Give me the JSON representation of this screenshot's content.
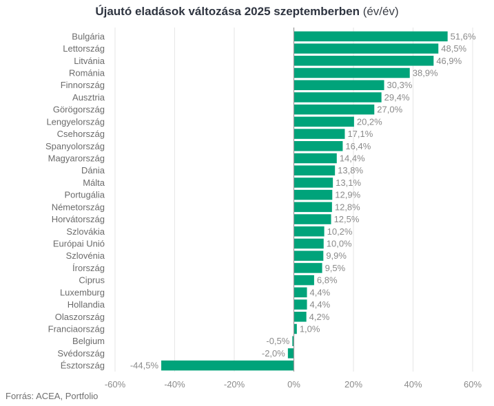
{
  "chart_data": {
    "type": "bar",
    "orientation": "horizontal",
    "title": "Újautó eladások változása 2025 szeptemberben",
    "title_suffix": "(év/év)",
    "xlabel": "",
    "ylabel": "",
    "xlim": [
      -60,
      60
    ],
    "x_ticks": [
      -60,
      -40,
      -20,
      0,
      20,
      40,
      60
    ],
    "x_tick_labels": [
      "-60%",
      "-40%",
      "-20%",
      "0%",
      "20%",
      "40%",
      "60%"
    ],
    "grid": "vertical",
    "legend": "none",
    "bar_color": "#00a37a",
    "categories": [
      "Bulgária",
      "Lettország",
      "Litvánia",
      "Románia",
      "Finnország",
      "Ausztria",
      "Görögország",
      "Lengyelország",
      "Csehország",
      "Spanyolország",
      "Magyarország",
      "Dánia",
      "Málta",
      "Portugália",
      "Németország",
      "Horvátország",
      "Szlovákia",
      "Európai Unió",
      "Szlovénia",
      "Írország",
      "Ciprus",
      "Luxemburg",
      "Hollandia",
      "Olaszország",
      "Franciaország",
      "Belgium",
      "Svédország",
      "Észtország"
    ],
    "values": [
      51.6,
      48.5,
      46.9,
      38.9,
      30.3,
      29.4,
      27.0,
      20.2,
      17.1,
      16.4,
      14.4,
      13.8,
      13.1,
      12.9,
      12.8,
      12.5,
      10.2,
      10.0,
      9.9,
      9.5,
      6.8,
      4.4,
      4.4,
      4.2,
      1.0,
      -0.5,
      -2.0,
      -44.5
    ],
    "value_labels": [
      "51,6%",
      "48,5%",
      "46,9%",
      "38,9%",
      "30,3%",
      "29,4%",
      "27,0%",
      "20,2%",
      "17,1%",
      "16,4%",
      "14,4%",
      "13,8%",
      "13,1%",
      "12,9%",
      "12,8%",
      "12,5%",
      "10,2%",
      "10,0%",
      "9,9%",
      "9,5%",
      "6,8%",
      "4,4%",
      "4,4%",
      "4,2%",
      "1,0%",
      "-0,5%",
      "-2,0%",
      "-44,5%"
    ],
    "source": "Forrás: ACEA, Portfolio"
  }
}
